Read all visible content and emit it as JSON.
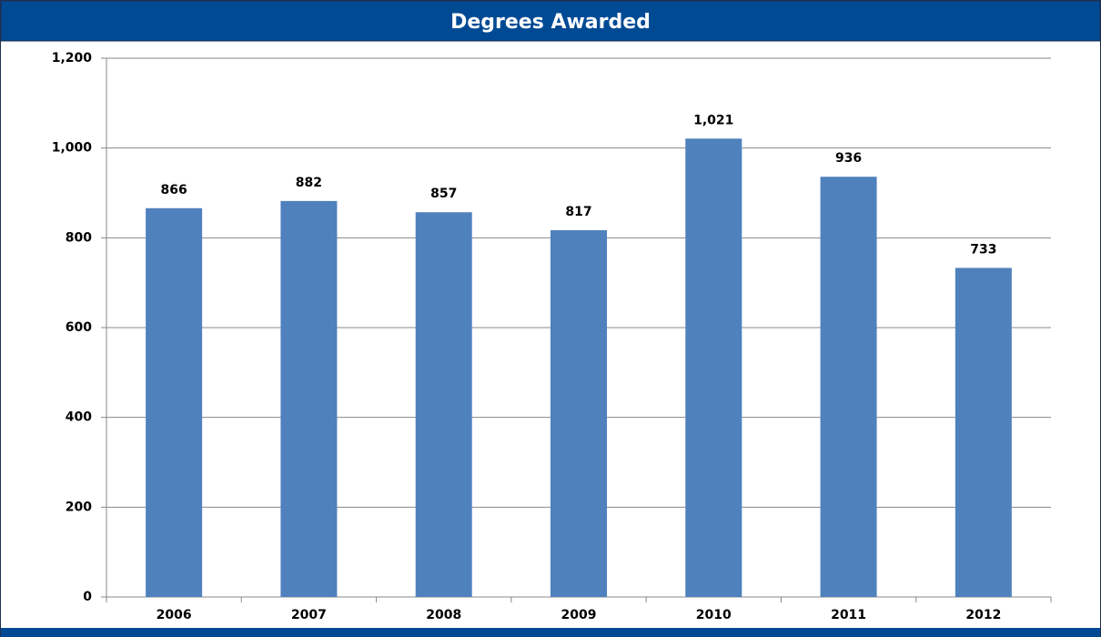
{
  "chart_data": {
    "type": "bar",
    "title": "Degrees Awarded",
    "categories": [
      "2006",
      "2007",
      "2008",
      "2009",
      "2010",
      "2011",
      "2012"
    ],
    "values": [
      866,
      882,
      857,
      817,
      1021,
      936,
      733
    ],
    "value_labels": [
      "866",
      "882",
      "857",
      "817",
      "1,021",
      "936",
      "733"
    ],
    "color": "#4f81bd",
    "ylim": [
      0,
      1200
    ],
    "yticks": [
      0,
      200,
      400,
      600,
      800,
      {
        "value": 1000,
        "label": "1,000"
      },
      {
        "value": 1200,
        "label": "1,200"
      }
    ],
    "grid": true
  }
}
